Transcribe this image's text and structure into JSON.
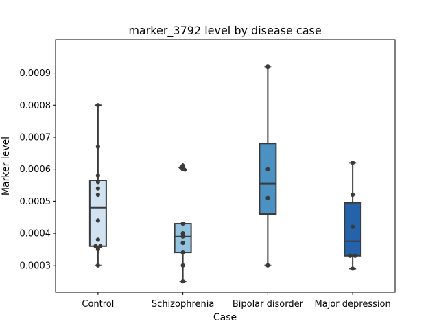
{
  "chart_data": {
    "type": "box",
    "title": "marker_3792 level by disease case",
    "xlabel": "Case",
    "ylabel": "Marker level",
    "ylim": [
      0.000216,
      0.001004
    ],
    "yticks": [
      0.0003,
      0.0004,
      0.0005,
      0.0006,
      0.0007,
      0.0008,
      0.0009
    ],
    "ytick_labels": [
      "0.0003",
      "0.0004",
      "0.0005",
      "0.0006",
      "0.0007",
      "0.0008",
      "0.0009"
    ],
    "grid": false,
    "categories": [
      "Control",
      "Schizophrenia",
      "Bipolar disorder",
      "Major depression"
    ],
    "colors": [
      "#d1e2f1",
      "#93c3df",
      "#4b91c2",
      "#2463a9"
    ],
    "edge_color": "#3a3a3a",
    "point_color": "#3a3a3a",
    "boxes": [
      {
        "q1": 0.00036,
        "median": 0.00048,
        "q3": 0.000565,
        "whisker_low": 0.0003,
        "whisker_high": 0.0008,
        "outliers": []
      },
      {
        "q1": 0.00034,
        "median": 0.00039,
        "q3": 0.00043,
        "whisker_low": 0.00025,
        "whisker_high": 0.00043,
        "outliers": [
          0.000605,
          0.000612,
          0.000598
        ]
      },
      {
        "q1": 0.00046,
        "median": 0.000555,
        "q3": 0.00068,
        "whisker_low": 0.0003,
        "whisker_high": 0.00092,
        "outliers": []
      },
      {
        "q1": 0.00033,
        "median": 0.000375,
        "q3": 0.000495,
        "whisker_low": 0.00029,
        "whisker_high": 0.00062,
        "outliers": []
      }
    ],
    "points": [
      [
        0.0008,
        0.00067,
        0.00058,
        0.00056,
        0.00054,
        0.00052,
        0.00044,
        0.00038,
        0.00036,
        0.00036,
        0.00035,
        0.0003
      ],
      [
        0.00061,
        0.000605,
        0.0006,
        0.00043,
        0.0004,
        0.00039,
        0.00037,
        0.00034,
        0.0003,
        0.00025
      ],
      [
        0.00092,
        0.0006,
        0.00051,
        0.0003
      ],
      [
        0.00062,
        0.00052,
        0.00042,
        0.00033,
        0.00033,
        0.00029
      ]
    ]
  }
}
